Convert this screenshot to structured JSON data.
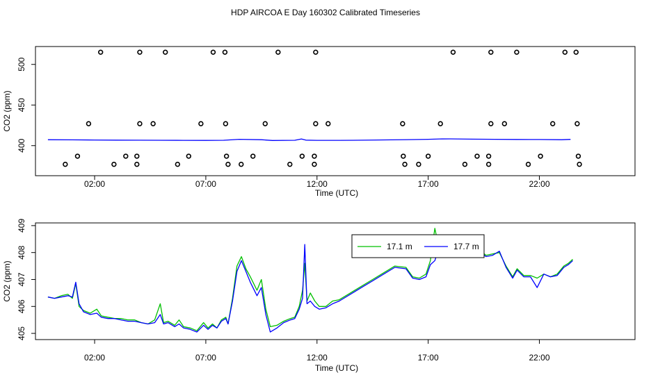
{
  "figure_title": "HDP AIRCOA E  Day 160302  Calibrated Timeseries",
  "chart_data": [
    {
      "type": "scatter",
      "title": "",
      "xlabel": "Time (UTC)",
      "ylabel": "CO2 (ppm)",
      "xlim": [
        -0.66,
        26.3
      ],
      "ylim": [
        363,
        522
      ],
      "x_ticks": [
        {
          "v": 2,
          "label": "02:00"
        },
        {
          "v": 7,
          "label": "07:00"
        },
        {
          "v": 12,
          "label": "12:00"
        },
        {
          "v": 17,
          "label": "17:00"
        },
        {
          "v": 22,
          "label": "22:00"
        }
      ],
      "y_ticks": [
        {
          "v": 400,
          "label": "400"
        },
        {
          "v": 450,
          "label": "450"
        },
        {
          "v": 500,
          "label": "500"
        }
      ],
      "grid": false,
      "legend": "none",
      "points": [
        {
          "x": 0.68,
          "y": 377
        },
        {
          "x": 1.23,
          "y": 387
        },
        {
          "x": 1.73,
          "y": 427
        },
        {
          "x": 2.27,
          "y": 515
        },
        {
          "x": 2.87,
          "y": 377
        },
        {
          "x": 3.4,
          "y": 387
        },
        {
          "x": 3.9,
          "y": 377
        },
        {
          "x": 3.9,
          "y": 387
        },
        {
          "x": 4.03,
          "y": 427
        },
        {
          "x": 4.03,
          "y": 515
        },
        {
          "x": 4.63,
          "y": 427
        },
        {
          "x": 5.18,
          "y": 515
        },
        {
          "x": 5.73,
          "y": 377
        },
        {
          "x": 6.23,
          "y": 387
        },
        {
          "x": 6.78,
          "y": 427
        },
        {
          "x": 7.33,
          "y": 515
        },
        {
          "x": 7.86,
          "y": 515
        },
        {
          "x": 7.89,
          "y": 427
        },
        {
          "x": 7.93,
          "y": 387
        },
        {
          "x": 8.0,
          "y": 377
        },
        {
          "x": 8.59,
          "y": 377
        },
        {
          "x": 9.12,
          "y": 387
        },
        {
          "x": 9.67,
          "y": 427
        },
        {
          "x": 10.25,
          "y": 515
        },
        {
          "x": 10.78,
          "y": 377
        },
        {
          "x": 11.33,
          "y": 387
        },
        {
          "x": 11.88,
          "y": 387
        },
        {
          "x": 11.88,
          "y": 377
        },
        {
          "x": 11.94,
          "y": 427
        },
        {
          "x": 11.94,
          "y": 515
        },
        {
          "x": 12.5,
          "y": 427
        },
        {
          "x": 15.85,
          "y": 427
        },
        {
          "x": 15.88,
          "y": 387
        },
        {
          "x": 15.95,
          "y": 377
        },
        {
          "x": 16.57,
          "y": 377
        },
        {
          "x": 17.0,
          "y": 387
        },
        {
          "x": 17.55,
          "y": 427
        },
        {
          "x": 18.12,
          "y": 515
        },
        {
          "x": 18.65,
          "y": 377
        },
        {
          "x": 19.2,
          "y": 387
        },
        {
          "x": 19.72,
          "y": 387
        },
        {
          "x": 19.72,
          "y": 377
        },
        {
          "x": 19.82,
          "y": 427
        },
        {
          "x": 19.82,
          "y": 515
        },
        {
          "x": 20.43,
          "y": 427
        },
        {
          "x": 20.98,
          "y": 515
        },
        {
          "x": 21.5,
          "y": 377
        },
        {
          "x": 22.05,
          "y": 387
        },
        {
          "x": 22.6,
          "y": 427
        },
        {
          "x": 23.15,
          "y": 515
        },
        {
          "x": 23.65,
          "y": 515
        },
        {
          "x": 23.7,
          "y": 427
        },
        {
          "x": 23.75,
          "y": 387
        },
        {
          "x": 23.8,
          "y": 377
        }
      ],
      "series": [
        {
          "name": "",
          "color": "#0000ff",
          "x": [
            -0.1,
            1,
            2,
            3,
            4,
            5,
            6,
            7,
            7.8,
            8.5,
            9.5,
            10,
            11,
            11.3,
            11.5,
            12,
            13,
            14,
            15,
            16,
            17,
            17.5,
            18,
            19,
            20,
            21,
            22,
            23,
            23.4
          ],
          "y": [
            407.3,
            407.1,
            406.9,
            406.8,
            406.7,
            406.6,
            406.5,
            406.4,
            406.6,
            407.8,
            407.3,
            406.3,
            406.6,
            408.2,
            406.8,
            406.5,
            406.5,
            406.7,
            407.0,
            407.4,
            407.8,
            408.2,
            408.3,
            408.0,
            407.8,
            407.6,
            407.5,
            407.3,
            407.7
          ]
        }
      ]
    },
    {
      "type": "line",
      "title": "",
      "xlabel": "Time (UTC)",
      "ylabel": "CO2 (ppm)",
      "xlim": [
        -0.66,
        26.3
      ],
      "ylim": [
        404.77,
        409.1
      ],
      "x_ticks": [
        {
          "v": 2,
          "label": "02:00"
        },
        {
          "v": 7,
          "label": "07:00"
        },
        {
          "v": 12,
          "label": "12:00"
        },
        {
          "v": 17,
          "label": "17:00"
        },
        {
          "v": 22,
          "label": "22:00"
        }
      ],
      "y_ticks": [
        {
          "v": 405,
          "label": "405"
        },
        {
          "v": 406,
          "label": "406"
        },
        {
          "v": 407,
          "label": "407"
        },
        {
          "v": 408,
          "label": "408"
        },
        {
          "v": 409,
          "label": "409"
        }
      ],
      "grid": false,
      "legend": "top-right",
      "series": [
        {
          "name": "17.1 m",
          "color": "#00c000",
          "x": [
            -0.1,
            0.2,
            0.5,
            0.8,
            1.0,
            1.15,
            1.3,
            1.5,
            1.8,
            2.1,
            2.3,
            2.6,
            2.9,
            3.2,
            3.5,
            3.8,
            4.1,
            4.4,
            4.7,
            4.95,
            5.1,
            5.3,
            5.6,
            5.8,
            6.0,
            6.3,
            6.6,
            6.9,
            7.1,
            7.3,
            7.5,
            7.7,
            7.9,
            8.0,
            8.2,
            8.4,
            8.6,
            8.8,
            9.0,
            9.3,
            9.5,
            9.7,
            9.9,
            10.2,
            10.5,
            10.8,
            11.0,
            11.2,
            11.35,
            11.45,
            11.55,
            11.7,
            11.9,
            12.1,
            12.4,
            12.7,
            13.0,
            13.5,
            14.0,
            14.5,
            15.0,
            15.5,
            16.0,
            16.3,
            16.6,
            16.9,
            17.1,
            17.3,
            17.5,
            17.7,
            17.9,
            18.1,
            18.3,
            18.5,
            18.8,
            19.0,
            19.3,
            19.6,
            19.9,
            20.2,
            20.5,
            20.8,
            21.0,
            21.3,
            21.6,
            21.9,
            22.2,
            22.5,
            22.8,
            23.1,
            23.3,
            23.5
          ],
          "y": [
            406.35,
            406.3,
            406.4,
            406.45,
            406.3,
            406.85,
            406.0,
            405.85,
            405.75,
            405.9,
            405.65,
            405.6,
            405.55,
            405.55,
            405.5,
            405.5,
            405.4,
            405.35,
            405.5,
            406.1,
            405.4,
            405.45,
            405.3,
            405.5,
            405.25,
            405.2,
            405.1,
            405.4,
            405.2,
            405.35,
            405.2,
            405.5,
            405.6,
            405.35,
            406.3,
            407.5,
            407.85,
            407.4,
            407.1,
            406.6,
            407.0,
            405.9,
            405.25,
            405.3,
            405.45,
            405.55,
            405.6,
            406.0,
            406.6,
            407.6,
            406.2,
            406.5,
            406.2,
            406.0,
            406.0,
            406.2,
            406.25,
            406.5,
            406.75,
            407.0,
            407.25,
            407.5,
            407.45,
            407.1,
            407.05,
            407.2,
            407.7,
            408.9,
            408.1,
            408.6,
            408.65,
            408.2,
            408.2,
            408.15,
            408.0,
            408.25,
            408.1,
            407.9,
            407.95,
            408.0,
            407.5,
            407.1,
            407.4,
            407.15,
            407.15,
            407.05,
            407.2,
            407.1,
            407.2,
            407.5,
            407.6,
            407.75
          ]
        },
        {
          "name": "17.7 m",
          "color": "#0000ff",
          "x": [
            -0.1,
            0.2,
            0.5,
            0.8,
            1.0,
            1.15,
            1.3,
            1.5,
            1.8,
            2.1,
            2.3,
            2.6,
            2.9,
            3.2,
            3.5,
            3.8,
            4.1,
            4.4,
            4.7,
            4.95,
            5.1,
            5.3,
            5.6,
            5.8,
            6.0,
            6.3,
            6.6,
            6.9,
            7.1,
            7.3,
            7.5,
            7.7,
            7.9,
            8.0,
            8.2,
            8.4,
            8.6,
            8.8,
            9.0,
            9.3,
            9.5,
            9.7,
            9.9,
            10.2,
            10.5,
            10.8,
            11.0,
            11.2,
            11.35,
            11.45,
            11.55,
            11.7,
            11.9,
            12.1,
            12.4,
            12.7,
            13.0,
            13.5,
            14.0,
            14.5,
            15.0,
            15.5,
            16.0,
            16.3,
            16.6,
            16.9,
            17.1,
            17.3,
            17.5,
            17.7,
            17.9,
            18.1,
            18.3,
            18.5,
            18.8,
            19.0,
            19.3,
            19.6,
            19.9,
            20.2,
            20.5,
            20.8,
            21.0,
            21.3,
            21.6,
            21.9,
            22.2,
            22.5,
            22.8,
            23.1,
            23.3,
            23.5
          ],
          "y": [
            406.35,
            406.3,
            406.35,
            406.4,
            406.35,
            406.9,
            406.1,
            405.8,
            405.7,
            405.75,
            405.6,
            405.55,
            405.55,
            405.5,
            405.45,
            405.45,
            405.4,
            405.35,
            405.4,
            405.7,
            405.35,
            405.4,
            405.25,
            405.35,
            405.2,
            405.15,
            405.05,
            405.3,
            405.15,
            405.3,
            405.2,
            405.45,
            405.55,
            405.35,
            406.2,
            407.3,
            407.7,
            407.3,
            406.9,
            406.4,
            406.7,
            405.7,
            405.05,
            405.2,
            405.4,
            405.5,
            405.55,
            405.9,
            406.3,
            408.3,
            406.1,
            406.2,
            406.0,
            405.9,
            405.95,
            406.1,
            406.2,
            406.45,
            406.7,
            406.95,
            407.2,
            407.45,
            407.4,
            407.05,
            407.0,
            407.1,
            407.55,
            407.7,
            408.2,
            408.4,
            408.6,
            408.15,
            408.1,
            408.0,
            408.05,
            408.2,
            408.05,
            407.85,
            407.9,
            408.05,
            407.45,
            407.05,
            407.35,
            407.1,
            407.1,
            406.7,
            407.2,
            407.1,
            407.15,
            407.45,
            407.55,
            407.7
          ]
        }
      ]
    }
  ]
}
